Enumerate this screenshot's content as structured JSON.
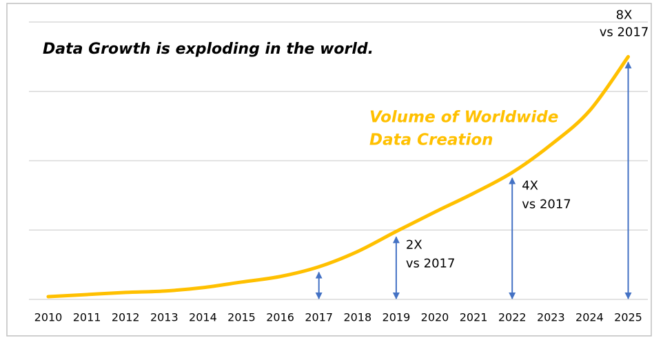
{
  "chart_data": {
    "type": "line",
    "title": "Data Growth is exploding in the world.",
    "categories": [
      "2010",
      "2011",
      "2012",
      "2013",
      "2014",
      "2015",
      "2016",
      "2017",
      "2018",
      "2019",
      "2020",
      "2021",
      "2022",
      "2023",
      "2024",
      "2025"
    ],
    "series": [
      {
        "color": "#ffc000",
        "values": [
          0.04,
          0.07,
          0.1,
          0.12,
          0.17,
          0.25,
          0.33,
          0.47,
          0.69,
          0.98,
          1.26,
          1.53,
          1.83,
          2.23,
          2.72,
          3.5
        ]
      }
    ],
    "series_label": [
      "Volume of Worldwide",
      "Data Creation"
    ],
    "ylim": [
      0,
      4
    ],
    "yticks": [
      0,
      1,
      2,
      3,
      4
    ],
    "grid": true,
    "arrow_color": "#4472c4",
    "arrows": [
      {
        "category": "2017"
      },
      {
        "category": "2019",
        "label": [
          "2X",
          "vs 2017"
        ]
      },
      {
        "category": "2022",
        "label": [
          "4X",
          "vs 2017"
        ]
      },
      {
        "category": "2025",
        "label": [
          "8X",
          "vs 2017"
        ]
      }
    ]
  }
}
